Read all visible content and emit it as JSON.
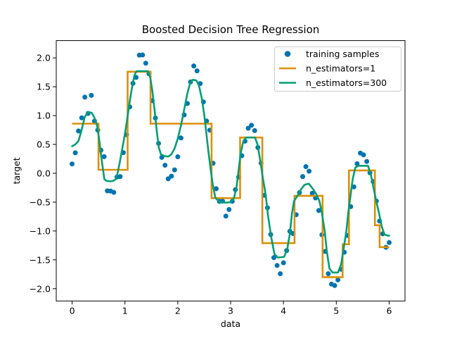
{
  "chart_data": {
    "type": "scatter",
    "title": "Boosted Decision Tree Regression",
    "xlabel": "data",
    "ylabel": "target",
    "xlim": [
      -0.3,
      6.3
    ],
    "ylim": [
      -2.213,
      2.3
    ],
    "grid": false,
    "legend_position": "upper right",
    "xticks": [
      0,
      1,
      2,
      3,
      4,
      5,
      6
    ],
    "xtick_labels": [
      "0",
      "1",
      "2",
      "3",
      "4",
      "5",
      "6"
    ],
    "yticks": [
      2.0,
      1.5,
      1.0,
      0.5,
      0.0,
      -0.5,
      -1.0,
      -1.5,
      -2.0
    ],
    "ytick_labels": [
      "2.0",
      "1.5",
      "1.0",
      "0.5",
      "0.0",
      "−0.5",
      "−1.0",
      "−1.5",
      "−2.0"
    ],
    "legend": [
      {
        "label": "training samples",
        "type": "marker",
        "color": "#0173b2"
      },
      {
        "label": "n_estimators=1",
        "type": "line",
        "color": "#de8f05"
      },
      {
        "label": "n_estimators=300",
        "type": "line",
        "color": "#029e73"
      }
    ],
    "series": [
      {
        "name": "training samples",
        "type": "scatter",
        "color": "#0173b2",
        "points": [
          [
            0.0,
            0.162
          ],
          [
            0.061,
            0.355
          ],
          [
            0.121,
            0.733
          ],
          [
            0.182,
            0.961
          ],
          [
            0.242,
            1.32
          ],
          [
            0.303,
            1.038
          ],
          [
            0.364,
            1.35
          ],
          [
            0.424,
            0.904
          ],
          [
            0.485,
            0.749
          ],
          [
            0.545,
            0.4
          ],
          [
            0.606,
            0.288
          ],
          [
            0.667,
            -0.305
          ],
          [
            0.727,
            -0.307
          ],
          [
            0.788,
            -0.33
          ],
          [
            0.848,
            -0.064
          ],
          [
            0.909,
            -0.057
          ],
          [
            0.97,
            0.359
          ],
          [
            1.03,
            0.669
          ],
          [
            1.091,
            1.151
          ],
          [
            1.152,
            1.557
          ],
          [
            1.212,
            1.662
          ],
          [
            1.273,
            2.047
          ],
          [
            1.333,
            2.051
          ],
          [
            1.394,
            1.908
          ],
          [
            1.455,
            1.726
          ],
          [
            1.515,
            1.258
          ],
          [
            1.576,
            0.958
          ],
          [
            1.636,
            0.519
          ],
          [
            1.697,
            0.276
          ],
          [
            1.758,
            0.14
          ],
          [
            1.818,
            -0.096
          ],
          [
            1.879,
            -0.049
          ],
          [
            1.939,
            0.059
          ],
          [
            2.0,
            0.286
          ],
          [
            2.061,
            0.613
          ],
          [
            2.121,
            1.012
          ],
          [
            2.182,
            1.209
          ],
          [
            2.242,
            1.583
          ],
          [
            2.303,
            1.86
          ],
          [
            2.364,
            1.775
          ],
          [
            2.424,
            1.555
          ],
          [
            2.485,
            1.236
          ],
          [
            2.545,
            0.905
          ],
          [
            2.606,
            0.748
          ],
          [
            2.667,
            0.175
          ],
          [
            2.727,
            -0.268
          ],
          [
            2.788,
            -0.488
          ],
          [
            2.848,
            -0.483
          ],
          [
            2.909,
            -0.742
          ],
          [
            2.97,
            -0.628
          ],
          [
            3.03,
            -0.487
          ],
          [
            3.091,
            -0.284
          ],
          [
            3.152,
            -0.065
          ],
          [
            3.212,
            0.305
          ],
          [
            3.273,
            0.556
          ],
          [
            3.333,
            0.781
          ],
          [
            3.394,
            0.832
          ],
          [
            3.455,
            0.739
          ],
          [
            3.515,
            0.447
          ],
          [
            3.576,
            0.176
          ],
          [
            3.636,
            -0.382
          ],
          [
            3.697,
            -0.597
          ],
          [
            3.758,
            -1.061
          ],
          [
            3.818,
            -1.461
          ],
          [
            3.879,
            -1.598
          ],
          [
            3.939,
            -1.741
          ],
          [
            4.0,
            -1.551
          ],
          [
            4.061,
            -1.339
          ],
          [
            4.121,
            -1.005
          ],
          [
            4.182,
            -1.044
          ],
          [
            4.242,
            -0.719
          ],
          [
            4.303,
            -0.335
          ],
          [
            4.364,
            -0.057
          ],
          [
            4.424,
            0.116
          ],
          [
            4.485,
            0.036
          ],
          [
            4.545,
            -0.347
          ],
          [
            4.606,
            -0.428
          ],
          [
            4.667,
            -0.645
          ],
          [
            4.727,
            -1.066
          ],
          [
            4.788,
            -1.355
          ],
          [
            4.848,
            -1.74
          ],
          [
            4.909,
            -1.921
          ],
          [
            4.97,
            -1.945
          ],
          [
            5.03,
            -1.848
          ],
          [
            5.091,
            -1.663
          ],
          [
            5.152,
            -1.368
          ],
          [
            5.212,
            -1.077
          ],
          [
            5.273,
            -0.578
          ],
          [
            5.333,
            -0.235
          ],
          [
            5.394,
            0.166
          ],
          [
            5.455,
            0.35
          ],
          [
            5.515,
            0.319
          ],
          [
            5.576,
            0.205
          ],
          [
            5.636,
            0.008
          ],
          [
            5.697,
            -0.145
          ],
          [
            5.758,
            -0.482
          ],
          [
            5.818,
            -0.827
          ],
          [
            5.879,
            -1.049
          ],
          [
            5.939,
            -1.282
          ],
          [
            6.0,
            -1.201
          ]
        ]
      },
      {
        "name": "n_estimators=1",
        "type": "step",
        "color": "#de8f05",
        "steps": [
          [
            0.0,
            0.5,
            0.86
          ],
          [
            0.5,
            1.05,
            0.06
          ],
          [
            1.05,
            1.485,
            1.76
          ],
          [
            1.485,
            2.64,
            0.86
          ],
          [
            2.64,
            3.18,
            -0.43
          ],
          [
            3.18,
            3.6,
            0.62
          ],
          [
            3.6,
            4.21,
            -1.21
          ],
          [
            4.21,
            4.74,
            -0.39
          ],
          [
            4.74,
            5.12,
            -1.8
          ],
          [
            5.12,
            5.24,
            -1.23
          ],
          [
            5.24,
            5.73,
            0.05
          ],
          [
            5.73,
            5.82,
            -0.9
          ],
          [
            5.82,
            6.0,
            -1.28
          ]
        ]
      },
      {
        "name": "n_estimators=300",
        "type": "line",
        "color": "#029e73",
        "points": [
          [
            0.0,
            0.47
          ],
          [
            0.06,
            0.5
          ],
          [
            0.12,
            0.56
          ],
          [
            0.18,
            0.75
          ],
          [
            0.24,
            0.98
          ],
          [
            0.3,
            1.06
          ],
          [
            0.37,
            1.05
          ],
          [
            0.42,
            0.97
          ],
          [
            0.47,
            0.84
          ],
          [
            0.51,
            0.6
          ],
          [
            0.55,
            0.3
          ],
          [
            0.58,
            0.1
          ],
          [
            0.61,
            -0.1
          ],
          [
            0.65,
            -0.13
          ],
          [
            0.72,
            -0.14
          ],
          [
            0.78,
            -0.13
          ],
          [
            0.83,
            -0.1
          ],
          [
            0.86,
            0.0
          ],
          [
            0.9,
            0.18
          ],
          [
            0.94,
            0.38
          ],
          [
            0.98,
            0.58
          ],
          [
            1.02,
            0.8
          ],
          [
            1.06,
            1.05
          ],
          [
            1.1,
            1.3
          ],
          [
            1.14,
            1.52
          ],
          [
            1.18,
            1.7
          ],
          [
            1.22,
            1.77
          ],
          [
            1.44,
            1.77
          ],
          [
            1.48,
            1.65
          ],
          [
            1.52,
            1.42
          ],
          [
            1.56,
            1.1
          ],
          [
            1.6,
            0.75
          ],
          [
            1.64,
            0.45
          ],
          [
            1.68,
            0.33
          ],
          [
            1.74,
            0.3
          ],
          [
            1.82,
            0.29
          ],
          [
            1.88,
            0.33
          ],
          [
            1.94,
            0.43
          ],
          [
            2.0,
            0.6
          ],
          [
            2.06,
            0.83
          ],
          [
            2.12,
            1.1
          ],
          [
            2.18,
            1.38
          ],
          [
            2.23,
            1.55
          ],
          [
            2.28,
            1.62
          ],
          [
            2.35,
            1.61
          ],
          [
            2.4,
            1.52
          ],
          [
            2.45,
            1.32
          ],
          [
            2.5,
            1.02
          ],
          [
            2.54,
            0.7
          ],
          [
            2.58,
            0.38
          ],
          [
            2.62,
            0.08
          ],
          [
            2.66,
            -0.18
          ],
          [
            2.71,
            -0.42
          ],
          [
            2.78,
            -0.49
          ],
          [
            2.9,
            -0.51
          ],
          [
            3.0,
            -0.5
          ],
          [
            3.06,
            -0.44
          ],
          [
            3.11,
            -0.25
          ],
          [
            3.15,
            0.05
          ],
          [
            3.19,
            0.35
          ],
          [
            3.24,
            0.55
          ],
          [
            3.29,
            0.62
          ],
          [
            3.46,
            0.62
          ],
          [
            3.51,
            0.5
          ],
          [
            3.56,
            0.22
          ],
          [
            3.61,
            -0.08
          ],
          [
            3.66,
            -0.35
          ],
          [
            3.71,
            -0.75
          ],
          [
            3.77,
            -1.12
          ],
          [
            3.83,
            -1.4
          ],
          [
            3.89,
            -1.46
          ],
          [
            4.01,
            -1.45
          ],
          [
            4.07,
            -1.32
          ],
          [
            4.12,
            -1.05
          ],
          [
            4.16,
            -0.7
          ],
          [
            4.2,
            -0.48
          ],
          [
            4.26,
            -0.4
          ],
          [
            4.33,
            -0.28
          ],
          [
            4.4,
            -0.2
          ],
          [
            4.48,
            -0.18
          ],
          [
            4.55,
            -0.26
          ],
          [
            4.62,
            -0.36
          ],
          [
            4.68,
            -0.48
          ],
          [
            4.73,
            -0.7
          ],
          [
            4.78,
            -1.0
          ],
          [
            4.82,
            -1.35
          ],
          [
            4.87,
            -1.65
          ],
          [
            4.93,
            -1.72
          ],
          [
            5.03,
            -1.72
          ],
          [
            5.09,
            -1.58
          ],
          [
            5.14,
            -1.3
          ],
          [
            5.19,
            -1.0
          ],
          [
            5.23,
            -0.65
          ],
          [
            5.27,
            -0.38
          ],
          [
            5.31,
            -0.1
          ],
          [
            5.36,
            0.1
          ],
          [
            5.42,
            0.13
          ],
          [
            5.6,
            0.13
          ],
          [
            5.66,
            -0.05
          ],
          [
            5.71,
            -0.28
          ],
          [
            5.76,
            -0.5
          ],
          [
            5.81,
            -0.7
          ],
          [
            5.86,
            -0.92
          ],
          [
            5.91,
            -1.06
          ],
          [
            5.97,
            -1.08
          ],
          [
            6.0,
            -1.08
          ]
        ]
      }
    ],
    "colors": {
      "background": "#ffffff",
      "spine": "#000000",
      "legend_border": "#cccccc"
    }
  }
}
